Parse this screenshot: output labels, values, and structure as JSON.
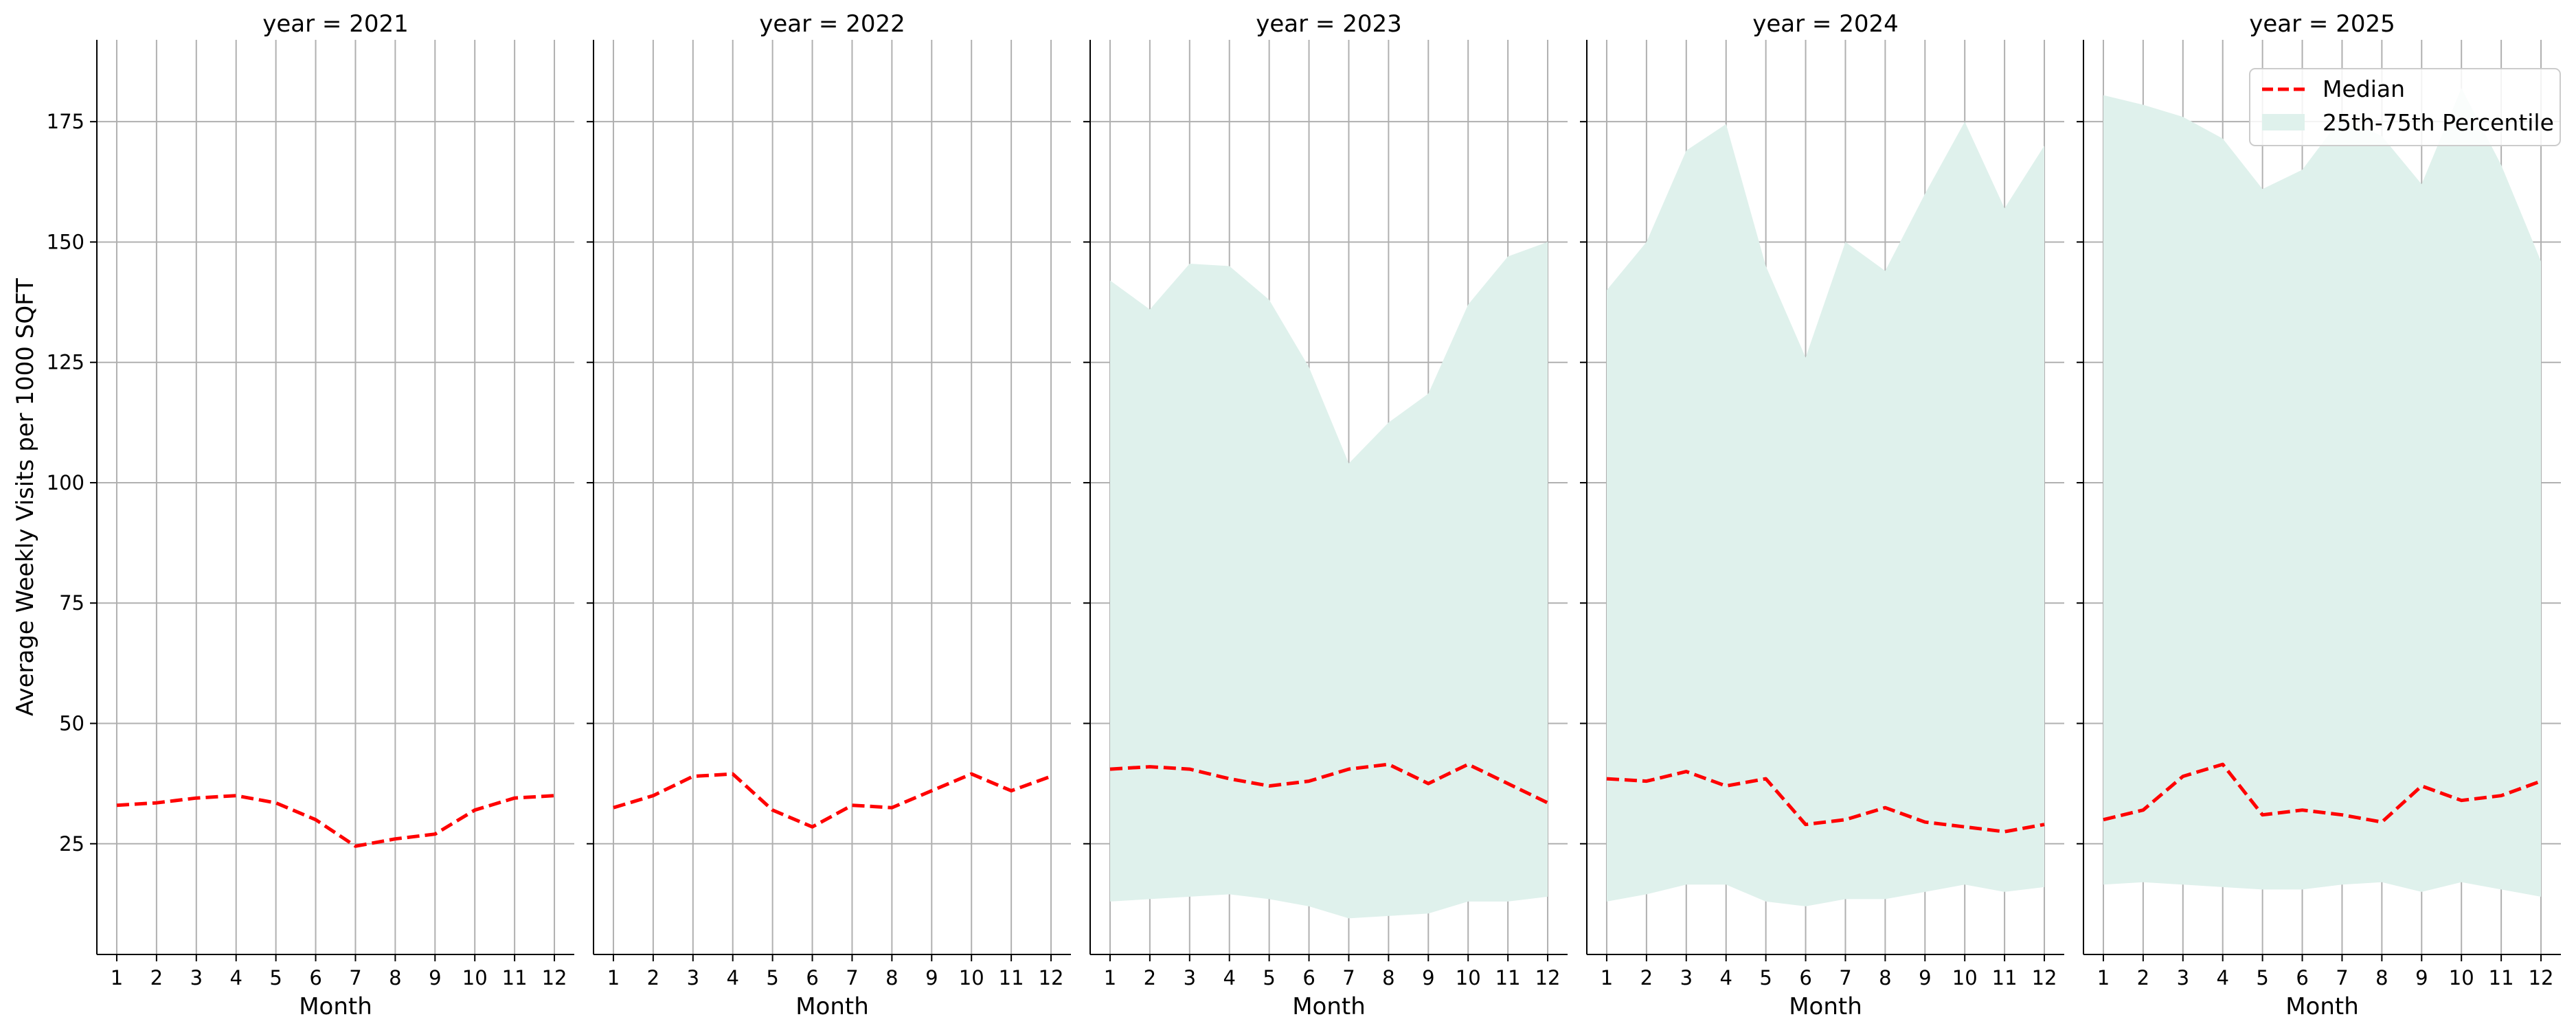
{
  "chart_data": {
    "type": "line",
    "layout": "faceted-panels",
    "shared_y": true,
    "ylabel": "Average Weekly Visits per 1000 SQFT",
    "xlabel": "Month",
    "xticks": [
      1,
      2,
      3,
      4,
      5,
      6,
      7,
      8,
      9,
      10,
      11,
      12
    ],
    "xlim": [
      0.5,
      12.5
    ],
    "ylim": [
      2,
      192
    ],
    "yticks": [
      25,
      50,
      75,
      100,
      125,
      150,
      175
    ],
    "grid": true,
    "legend": {
      "placement": "top-right of last panel",
      "entries": [
        "Median",
        "25th-75th Percentile"
      ]
    },
    "colors": {
      "median": "#ff0000",
      "band": "#dff1ec",
      "grid": "#b0b0b0",
      "axis": "#000000"
    },
    "panels": [
      {
        "title": "year = 2021",
        "median": [
          33,
          33.5,
          34.5,
          35,
          33.5,
          30,
          24.5,
          26,
          27,
          32,
          34.5,
          35
        ],
        "p25": null,
        "p75": null
      },
      {
        "title": "year = 2022",
        "median": [
          32.5,
          35,
          39,
          39.5,
          32,
          28.5,
          33,
          32.5,
          36,
          39.5,
          36,
          39
        ],
        "p25": null,
        "p75": null
      },
      {
        "title": "year = 2023",
        "median": [
          40.5,
          41,
          40.5,
          38.5,
          37,
          38,
          40.5,
          41.5,
          37.5,
          41.5,
          37.5,
          33.5
        ],
        "p25": [
          13,
          13.5,
          14,
          14.5,
          13.5,
          12,
          9.5,
          10,
          10.5,
          13,
          13,
          14
        ],
        "p75": [
          142,
          136,
          145.5,
          145,
          138,
          124,
          104,
          112.5,
          118.5,
          137,
          147,
          150
        ]
      },
      {
        "title": "year = 2024",
        "median": [
          38.5,
          38,
          40,
          37,
          38.5,
          29,
          30,
          32.5,
          29.5,
          28.5,
          27.5,
          29
        ],
        "p25": [
          13,
          14.5,
          16.5,
          16.5,
          13,
          12,
          13.5,
          13.5,
          15,
          16.5,
          15,
          16
        ],
        "p75": [
          140,
          150,
          169,
          174.5,
          145,
          126,
          150,
          144,
          160,
          175,
          157,
          170
        ]
      },
      {
        "title": "year = 2025",
        "median": [
          30,
          32,
          39,
          41.5,
          31,
          32,
          31,
          29.5,
          37,
          34,
          35,
          38
        ],
        "p25": [
          16.5,
          17,
          16.5,
          16,
          15.5,
          15.5,
          16.5,
          17,
          15,
          17,
          15.5,
          14
        ],
        "p75": [
          180.5,
          178.5,
          176,
          171.5,
          161,
          165,
          176,
          172,
          162,
          182,
          166,
          146
        ]
      }
    ]
  }
}
